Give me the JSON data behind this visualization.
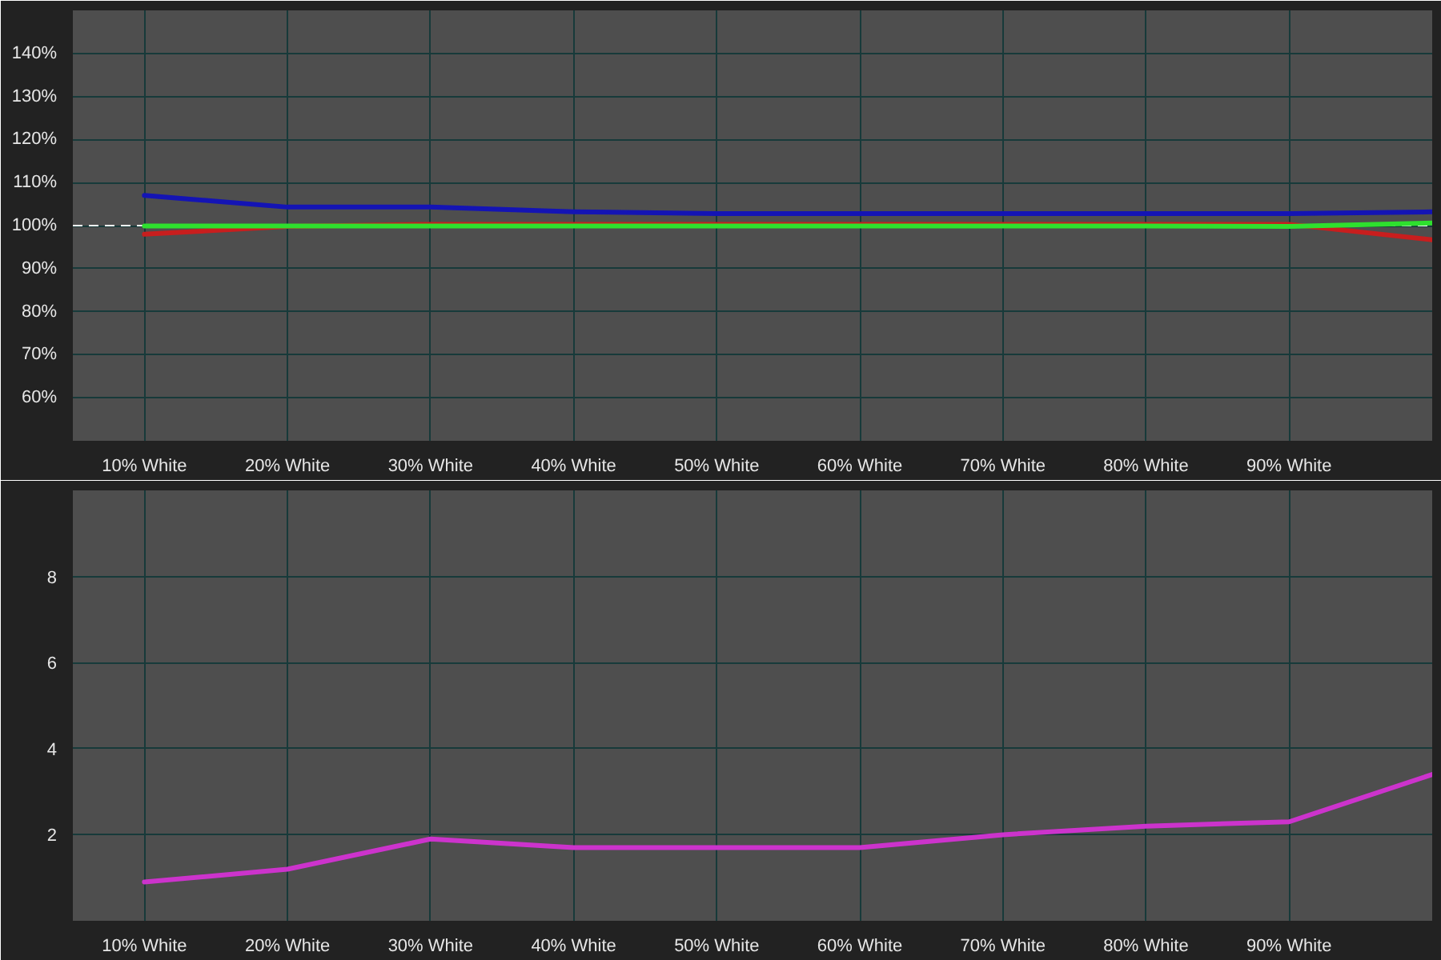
{
  "chart_data": [
    {
      "type": "line",
      "categories": [
        "10% White",
        "20% White",
        "30% White",
        "40% White",
        "50% White",
        "60% White",
        "70% White",
        "80% White",
        "90% White",
        null
      ],
      "series": [
        {
          "color": "#c81e1e",
          "values": [
            98.0,
            99.8,
            100.3,
            100.3,
            100.3,
            100.3,
            100.3,
            100.3,
            100.3,
            96.7
          ]
        },
        {
          "color": "#2ee02e",
          "values": [
            99.9,
            99.9,
            99.9,
            99.9,
            99.9,
            99.9,
            99.9,
            99.9,
            99.8,
            100.6
          ]
        },
        {
          "color": "#1414b4",
          "values": [
            107.0,
            104.3,
            104.3,
            103.2,
            102.8,
            102.8,
            102.8,
            102.8,
            102.8,
            103.2
          ]
        }
      ],
      "ylim": [
        50,
        150
      ],
      "yticks": [
        {
          "value": 60,
          "label": "60%"
        },
        {
          "value": 70,
          "label": "70%"
        },
        {
          "value": 80,
          "label": "80%"
        },
        {
          "value": 90,
          "label": "90%"
        },
        {
          "value": 100,
          "label": "100%"
        },
        {
          "value": 110,
          "label": "110%"
        },
        {
          "value": 120,
          "label": "120%"
        },
        {
          "value": 130,
          "label": "130%"
        },
        {
          "value": 140,
          "label": "140%"
        }
      ],
      "grid": true,
      "ref_lines": [
        {
          "axis": "y",
          "value": 100,
          "color": "#ffffff",
          "line_style": "dashed"
        }
      ]
    },
    {
      "type": "line",
      "categories": [
        "10% White",
        "20% White",
        "30% White",
        "40% White",
        "50% White",
        "60% White",
        "70% White",
        "80% White",
        "90% White",
        null
      ],
      "series": [
        {
          "color": "#cc33cc",
          "values": [
            0.9,
            1.2,
            1.9,
            1.7,
            1.7,
            1.7,
            2.0,
            2.2,
            2.3,
            3.4
          ]
        }
      ],
      "ylim": [
        0,
        10
      ],
      "yticks": [
        2,
        4,
        6,
        8
      ],
      "grid": true
    }
  ]
}
